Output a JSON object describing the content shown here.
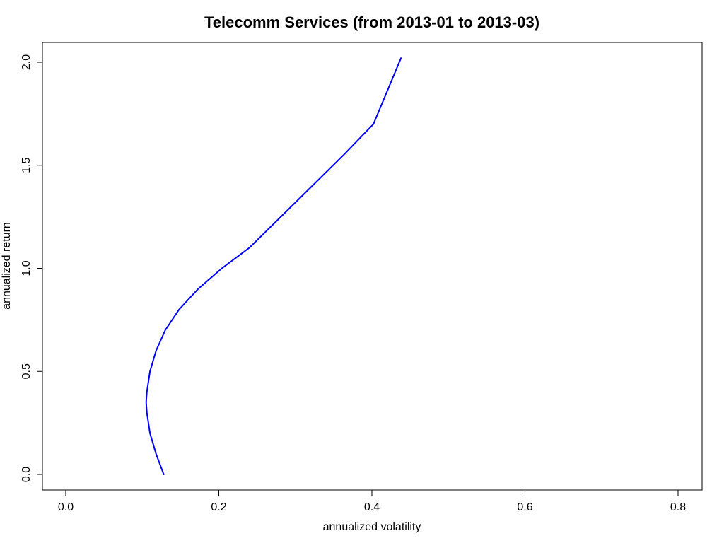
{
  "chart_data": {
    "type": "line",
    "title": "Telecomm Services (from 2013-01 to 2013-03)",
    "xlabel": "annualized volatility",
    "ylabel": "annualized return",
    "xlim": [
      -0.07,
      0.83
    ],
    "ylim": [
      -0.08,
      2.1
    ],
    "x_ticks": [
      0.0,
      0.2,
      0.4,
      0.6,
      0.8
    ],
    "x_tick_labels": [
      "0.0",
      "0.2",
      "0.4",
      "0.6",
      "0.8"
    ],
    "y_ticks": [
      0.0,
      0.5,
      1.0,
      1.5,
      2.0
    ],
    "y_tick_labels": [
      "0.0",
      "0.5",
      "1.0",
      "1.5",
      "2.0"
    ],
    "grid": false,
    "line_color": "#0000ff",
    "series": [
      {
        "x": [
          0.128,
          0.118,
          0.11,
          0.106,
          0.105,
          0.106,
          0.11,
          0.118,
          0.13,
          0.148,
          0.173,
          0.204,
          0.24,
          0.281,
          0.322,
          0.363,
          0.402,
          0.438
        ],
        "y": [
          0.0,
          0.1,
          0.2,
          0.3,
          0.35,
          0.4,
          0.5,
          0.6,
          0.7,
          0.8,
          0.9,
          1.0,
          1.1,
          1.25,
          1.4,
          1.55,
          1.7,
          2.02
        ]
      }
    ]
  }
}
